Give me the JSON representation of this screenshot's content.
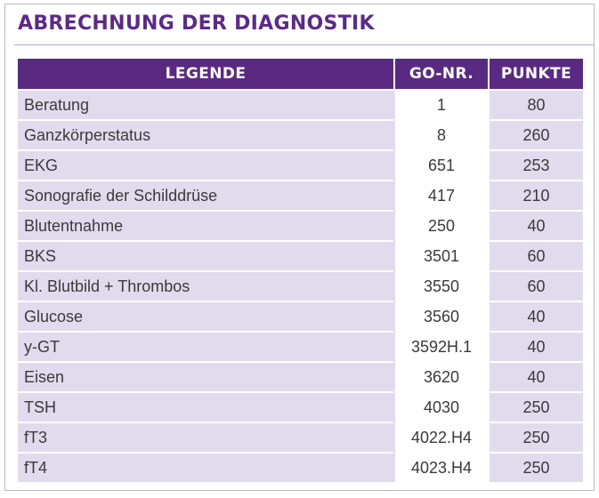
{
  "title": "ABRECHNUNG DER DIAGNOSTIK",
  "colors": {
    "accent": "#5a2a82",
    "row_tint": "#e2dbee"
  },
  "table": {
    "headers": [
      "LEGENDE",
      "GO-NR.",
      "PUNKTE"
    ],
    "rows": [
      {
        "legende": "Beratung",
        "go_nr": "1",
        "punkte": "80"
      },
      {
        "legende": "Ganzkörperstatus",
        "go_nr": "8",
        "punkte": "260"
      },
      {
        "legende": "EKG",
        "go_nr": "651",
        "punkte": "253"
      },
      {
        "legende": "Sonografie der Schilddrüse",
        "go_nr": "417",
        "punkte": "210"
      },
      {
        "legende": "Blutentnahme",
        "go_nr": "250",
        "punkte": "40"
      },
      {
        "legende": "BKS",
        "go_nr": "3501",
        "punkte": "60"
      },
      {
        "legende": "Kl. Blutbild + Thrombos",
        "go_nr": "3550",
        "punkte": "60"
      },
      {
        "legende": "Glucose",
        "go_nr": "3560",
        "punkte": "40"
      },
      {
        "legende": "y-GT",
        "go_nr": "3592H.1",
        "punkte": "40"
      },
      {
        "legende": "Eisen",
        "go_nr": "3620",
        "punkte": "40"
      },
      {
        "legende": "TSH",
        "go_nr": "4030",
        "punkte": "250"
      },
      {
        "legende": "fT3",
        "go_nr": "4022.H4",
        "punkte": "250"
      },
      {
        "legende": "fT4",
        "go_nr": "4023.H4",
        "punkte": "250"
      }
    ]
  }
}
